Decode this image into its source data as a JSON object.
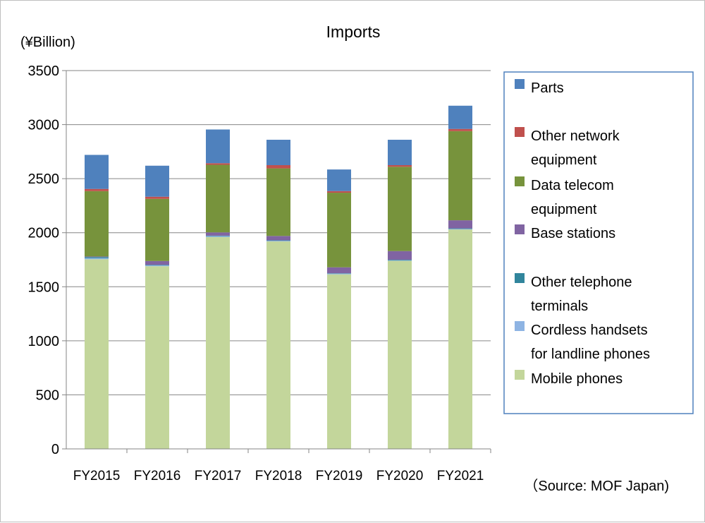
{
  "chart_data": {
    "type": "bar",
    "stacked": true,
    "title": "Imports",
    "ylabel": "(¥Billion)",
    "xlabel": "",
    "ylim": [
      0,
      3500
    ],
    "yticks": [
      0,
      500,
      1000,
      1500,
      2000,
      2500,
      3000,
      3500
    ],
    "grid": true,
    "legend_position": "right",
    "source_note": "（Source: MOF Japan)",
    "categories": [
      "FY2015",
      "FY2016",
      "FY2017",
      "FY2018",
      "FY2019",
      "FY2020",
      "FY2021"
    ],
    "series": [
      {
        "name": "Mobile phones",
        "color": "#c3d69b",
        "values": [
          1755,
          1690,
          1960,
          1920,
          1615,
          1740,
          2030
        ]
      },
      {
        "name": "Cordless handsets for landline phones",
        "color": "#8eb4e3",
        "values": [
          10,
          8,
          8,
          6,
          6,
          5,
          5
        ]
      },
      {
        "name": "Other telephone terminals",
        "color": "#31859c",
        "values": [
          10,
          5,
          5,
          4,
          4,
          5,
          5
        ]
      },
      {
        "name": "Base stations",
        "color": "#8064a2",
        "values": [
          5,
          35,
          30,
          40,
          55,
          80,
          75
        ]
      },
      {
        "name": "Data telecom equipment",
        "color": "#77933c",
        "values": [
          605,
          575,
          625,
          625,
          690,
          780,
          825
        ]
      },
      {
        "name": "Other network equipment",
        "color": "#c0504d",
        "values": [
          20,
          20,
          15,
          30,
          15,
          15,
          20
        ]
      },
      {
        "name": "Parts",
        "color": "#4f81bd",
        "values": [
          315,
          287,
          312,
          235,
          200,
          235,
          215
        ]
      }
    ],
    "legend_order": [
      "Parts",
      "Other network equipment",
      "Data telecom equipment",
      "Base stations",
      "Other telephone terminals",
      "Cordless handsets for landline phones",
      "Mobile phones"
    ]
  }
}
